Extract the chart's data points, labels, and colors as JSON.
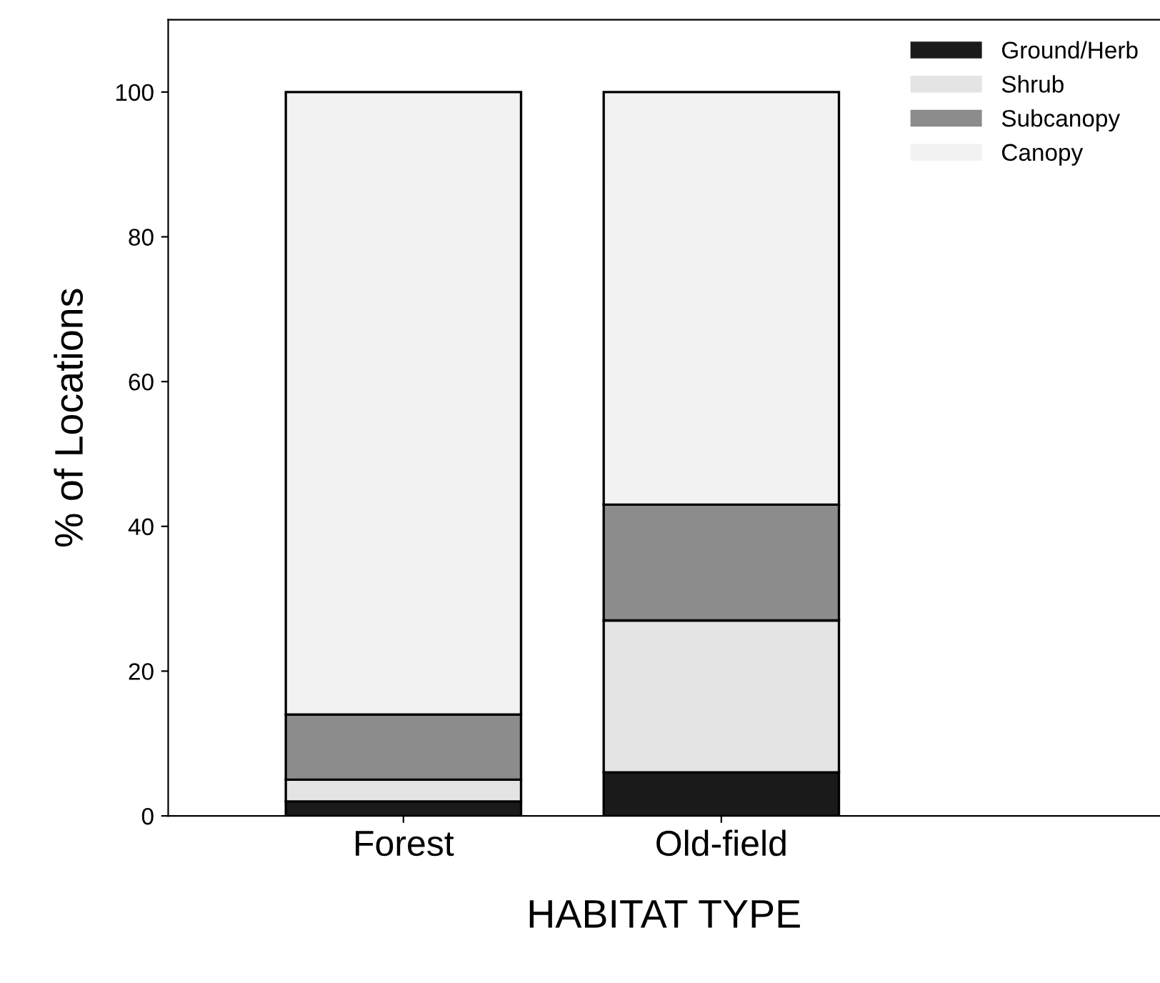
{
  "chart_data": {
    "type": "bar",
    "stacked": true,
    "xlabel": "HABITAT TYPE",
    "ylabel": "% of Locations",
    "categories": [
      "Forest",
      "Old-field"
    ],
    "series": [
      {
        "name": "Ground/Herb",
        "color": "#1a1a1a",
        "values": [
          2,
          6
        ]
      },
      {
        "name": "Shrub",
        "color": "#e4e4e4",
        "values": [
          3,
          21
        ]
      },
      {
        "name": "Subcanopy",
        "color": "#8c8c8c",
        "values": [
          9,
          16
        ]
      },
      {
        "name": "Canopy",
        "color": "#f2f2f2",
        "values": [
          86,
          57
        ]
      }
    ],
    "ylim": [
      0,
      110
    ],
    "yticks": [
      0,
      20,
      40,
      60,
      80,
      100
    ],
    "grid": false,
    "legend": "top right"
  }
}
